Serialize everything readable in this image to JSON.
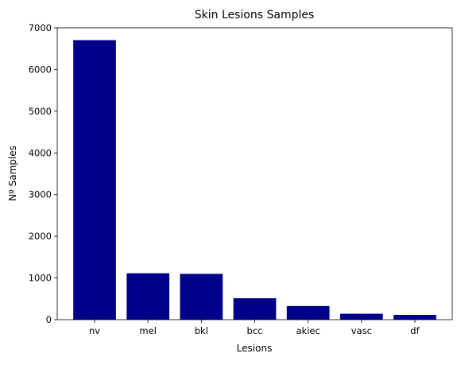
{
  "chart_data": {
    "type": "bar",
    "title": "Skin Lesions Samples",
    "xlabel": "Lesions",
    "ylabel": "Nº Samples",
    "categories": [
      "nv",
      "mel",
      "bkl",
      "bcc",
      "akiec",
      "vasc",
      "df"
    ],
    "values": [
      6705,
      1113,
      1099,
      514,
      327,
      142,
      115
    ],
    "ylim": [
      0,
      7000
    ],
    "yticks": [
      0,
      1000,
      2000,
      3000,
      4000,
      5000,
      6000,
      7000
    ],
    "bar_color": "#00008b",
    "grid": false,
    "legend": false
  }
}
